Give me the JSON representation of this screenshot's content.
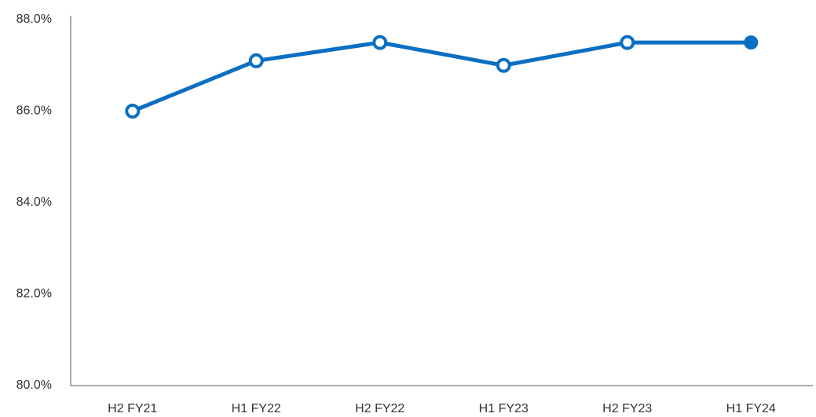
{
  "chart_data": {
    "type": "line",
    "categories": [
      "H2 FY21",
      "H1 FY22",
      "H2 FY22",
      "H1 FY23",
      "H2 FY23",
      "H1 FY24"
    ],
    "series": [
      {
        "color": "#0a6fc2",
        "values": [
          86.0,
          87.1,
          87.5,
          87.0,
          87.5,
          87.5
        ]
      }
    ],
    "ylim": [
      80,
      88
    ],
    "yticks": [
      {
        "value": 80,
        "label": "80.0%"
      },
      {
        "value": 82,
        "label": "82.0%"
      },
      {
        "value": 84,
        "label": "84.0%"
      },
      {
        "value": 86,
        "label": "86.0%"
      },
      {
        "value": 88,
        "label": "88.0%"
      }
    ],
    "grid": false,
    "last_marker_filled": true
  }
}
